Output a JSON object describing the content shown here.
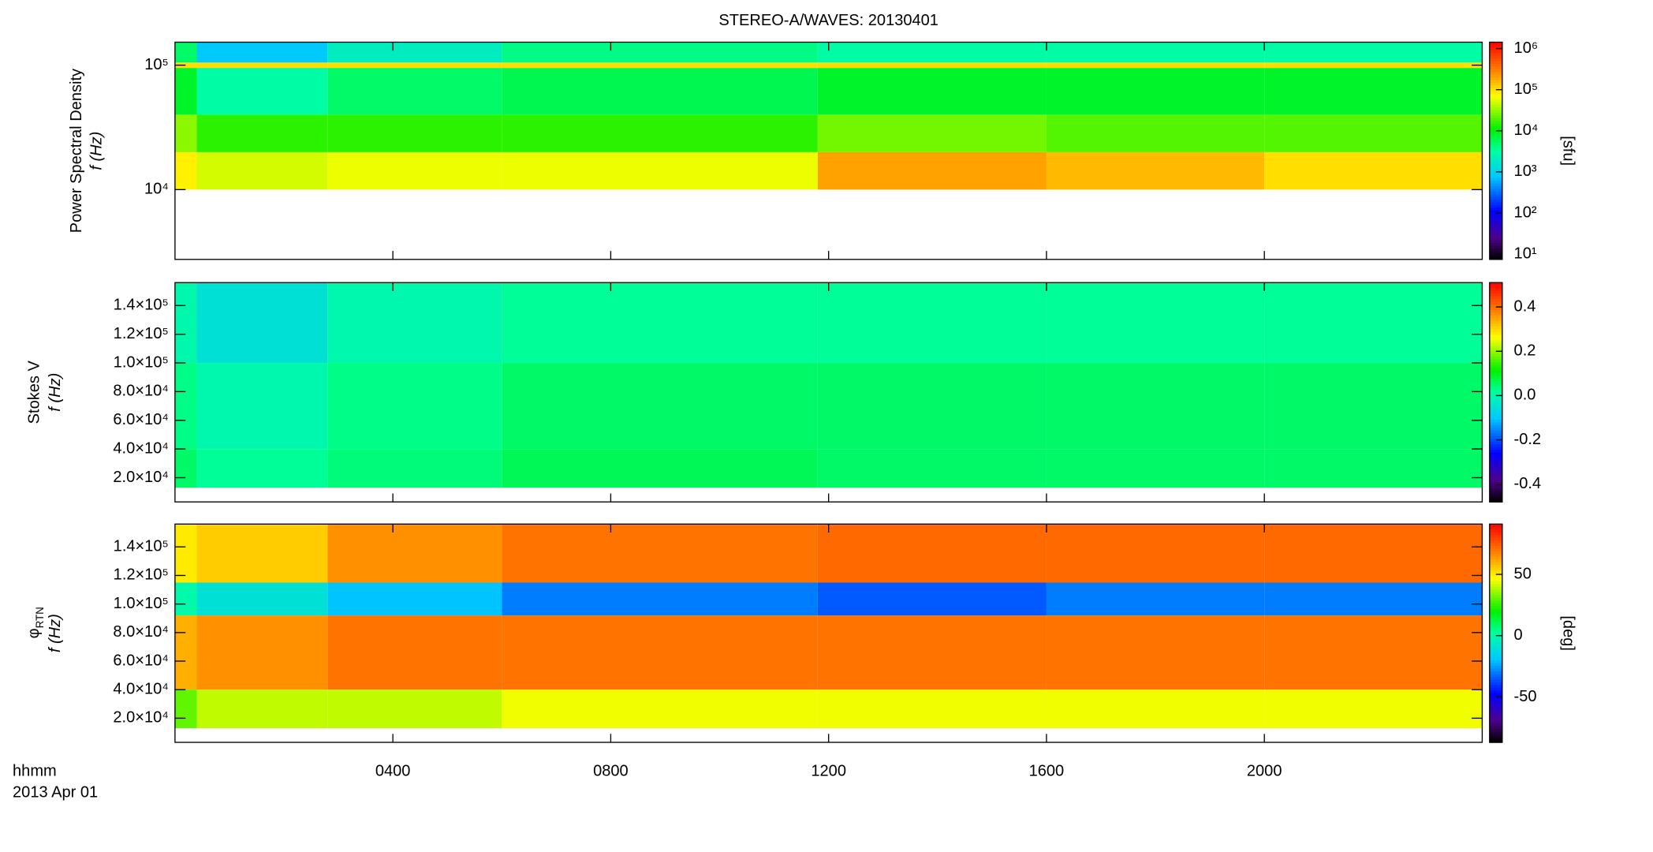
{
  "chart_data": [
    {
      "type": "heatmap",
      "title": "STEREO-A/WAVES: 20130401",
      "ylabel": "Power Spectral Density",
      "ylabel2": "f (Hz)",
      "xlim": [
        0,
        24
      ],
      "xticks": [
        {
          "value": 4,
          "label": "0400"
        },
        {
          "value": 8,
          "label": "0800"
        },
        {
          "value": 12,
          "label": "1200"
        },
        {
          "value": 16,
          "label": "1600"
        },
        {
          "value": 20,
          "label": "2000"
        }
      ],
      "ylim": [
        2750,
        153000
      ],
      "ylog": true,
      "yticks": [
        {
          "value": 100000,
          "label": "10⁵"
        },
        {
          "value": 10000,
          "label": "10⁴"
        }
      ],
      "time_edges": [
        0,
        0.4,
        2.8,
        6,
        11.8,
        16,
        20,
        24
      ],
      "freq_edges": [
        10000,
        20000,
        40000,
        95000,
        105000,
        153000
      ],
      "z": [
        [
          80000,
          50000,
          60000,
          60000,
          200000,
          150000,
          100000
        ],
        [
          30000,
          15000,
          15000,
          15000,
          25000,
          20000,
          20000
        ],
        [
          8000,
          3000,
          5000,
          6000,
          8000,
          8000,
          8000
        ],
        [
          100000,
          100000,
          100000,
          100000,
          100000,
          100000,
          100000
        ],
        [
          5000,
          800,
          2000,
          4000,
          3000,
          3000,
          3000
        ]
      ],
      "clim": [
        7.45,
        1430000
      ],
      "clog": true,
      "colormap": "rainbow",
      "cticks": [
        {
          "value": 10,
          "label": "10¹"
        },
        {
          "value": 100,
          "label": "10²"
        },
        {
          "value": 1000,
          "label": "10³"
        },
        {
          "value": 10000,
          "label": "10⁴"
        },
        {
          "value": 100000,
          "label": "10⁵"
        },
        {
          "value": 1000000,
          "label": "10⁶"
        }
      ],
      "clabel": "[sfu]"
    },
    {
      "type": "heatmap",
      "ylabel": "Stokes V",
      "ylabel2": "f (Hz)",
      "xlim": [
        0,
        24
      ],
      "xticks": [
        {
          "value": 4,
          "label": "0400"
        },
        {
          "value": 8,
          "label": "0800"
        },
        {
          "value": 12,
          "label": "1200"
        },
        {
          "value": 16,
          "label": "1600"
        },
        {
          "value": 20,
          "label": "2000"
        }
      ],
      "ylim": [
        3100,
        156000
      ],
      "ylog": false,
      "yticks": [
        {
          "value": 140000,
          "label": "1.4×10⁵"
        },
        {
          "value": 120000,
          "label": "1.2×10⁵"
        },
        {
          "value": 100000,
          "label": "1.0×10⁵"
        },
        {
          "value": 80000,
          "label": "8.0×10⁴"
        },
        {
          "value": 60000,
          "label": "6.0×10⁴"
        },
        {
          "value": 40000,
          "label": "4.0×10⁴"
        },
        {
          "value": 20000,
          "label": "2.0×10⁴"
        }
      ],
      "time_edges": [
        0,
        0.4,
        2.8,
        6,
        11.8,
        16,
        20,
        24
      ],
      "freq_edges": [
        13000,
        40000,
        100000,
        156000
      ],
      "z": [
        [
          0.05,
          0.02,
          0.04,
          0.06,
          0.05,
          0.05,
          0.05
        ],
        [
          0.03,
          0.0,
          0.03,
          0.05,
          0.05,
          0.05,
          0.05
        ],
        [
          0.0,
          -0.05,
          0.0,
          0.02,
          0.02,
          0.02,
          0.02
        ]
      ],
      "clim": [
        -0.48,
        0.51
      ],
      "clog": false,
      "colormap": "rainbow",
      "cticks": [
        0.4,
        0.2,
        {
          "value": 0,
          "label": "0.0"
        },
        -0.2,
        -0.4
      ]
    },
    {
      "type": "heatmap",
      "ylabel_symbol": "φ",
      "ylabel_sub": "RTN",
      "ylabel2": "f (Hz)",
      "xlim": [
        0,
        24
      ],
      "xticks": [
        {
          "value": 4,
          "label": "0400"
        },
        {
          "value": 8,
          "label": "0800"
        },
        {
          "value": 12,
          "label": "1200"
        },
        {
          "value": 16,
          "label": "1600"
        },
        {
          "value": 20,
          "label": "2000"
        }
      ],
      "xlabel": "hhmm",
      "date": "2013 Apr 01",
      "ylim": [
        3100,
        156000
      ],
      "ylog": false,
      "yticks": [
        {
          "value": 140000,
          "label": "1.4×10⁵"
        },
        {
          "value": 120000,
          "label": "1.2×10⁵"
        },
        {
          "value": 100000,
          "label": "1.0×10⁵"
        },
        {
          "value": 80000,
          "label": "8.0×10⁴"
        },
        {
          "value": 60000,
          "label": "6.0×10⁴"
        },
        {
          "value": 40000,
          "label": "4.0×10⁴"
        },
        {
          "value": 20000,
          "label": "2.0×10⁴"
        }
      ],
      "time_edges": [
        0,
        0.4,
        2.8,
        6,
        11.8,
        16,
        20,
        24
      ],
      "freq_edges": [
        13000,
        40000,
        92000,
        115000,
        156000
      ],
      "z": [
        [
          30,
          40,
          40,
          45,
          45,
          45,
          45
        ],
        [
          60,
          65,
          70,
          70,
          70,
          70,
          70
        ],
        [
          0,
          -10,
          -20,
          -30,
          -35,
          -30,
          -30
        ],
        [
          50,
          55,
          65,
          70,
          72,
          72,
          72
        ]
      ],
      "clim": [
        -87,
        91
      ],
      "clog": false,
      "colormap": "rainbow",
      "cticks": [
        50,
        0,
        -50
      ],
      "clabel": "[deg]"
    }
  ]
}
